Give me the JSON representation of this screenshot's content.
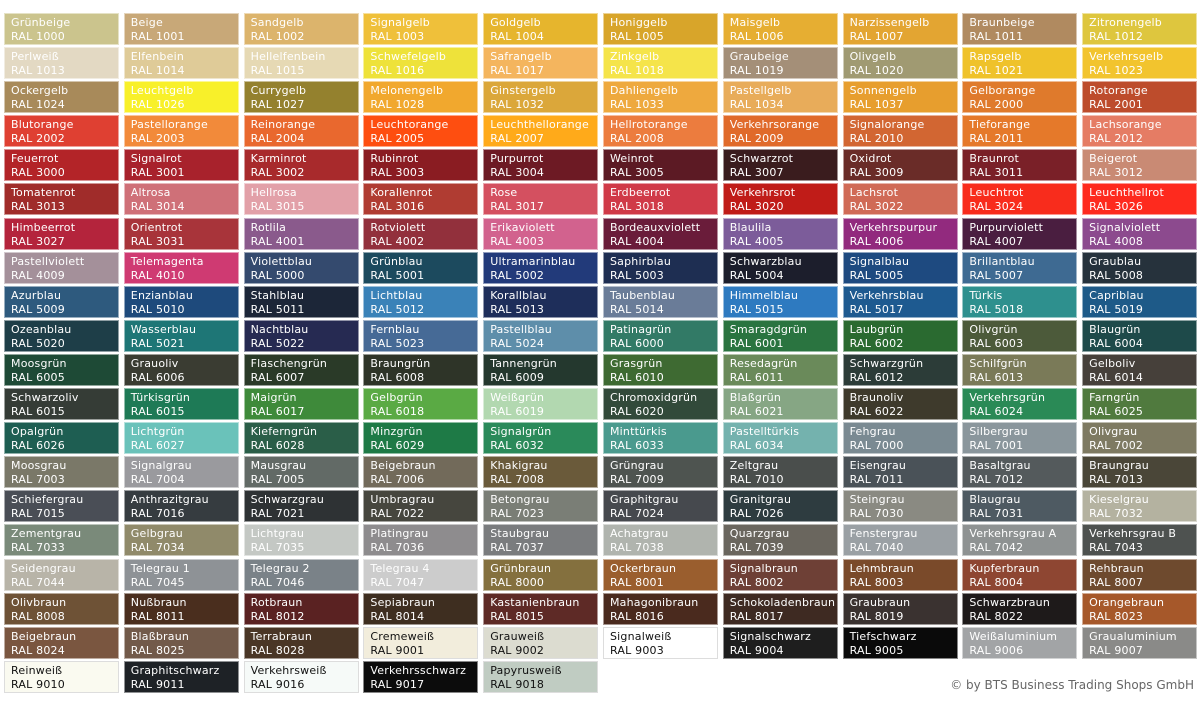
{
  "swatches": [
    {
      "name": "Grünbeige",
      "code": "RAL 1000",
      "color": "#cbc48d"
    },
    {
      "name": "Beige",
      "code": "RAL 1001",
      "color": "#c8a878"
    },
    {
      "name": "Sandgelb",
      "code": "RAL 1002",
      "color": "#dcb46c"
    },
    {
      "name": "Signalgelb",
      "code": "RAL 1003",
      "color": "#efc03a"
    },
    {
      "name": "Goldgelb",
      "code": "RAL 1004",
      "color": "#e6b52d"
    },
    {
      "name": "Honiggelb",
      "code": "RAL 1005",
      "color": "#d8a52a"
    },
    {
      "name": "Maisgelb",
      "code": "RAL 1006",
      "color": "#e6ae32"
    },
    {
      "name": "Narzissengelb",
      "code": "RAL 1007",
      "color": "#e3a532"
    },
    {
      "name": "Braunbeige",
      "code": "RAL 1011",
      "color": "#b08a60"
    },
    {
      "name": "Zitronengelb",
      "code": "RAL 1012",
      "color": "#dec63e"
    },
    {
      "name": "Perlweiß",
      "code": "RAL 1013",
      "color": "#e3d9c3"
    },
    {
      "name": "Elfenbein",
      "code": "RAL 1014",
      "color": "#dfcb98"
    },
    {
      "name": "Hellelfenbein",
      "code": "RAL 1015",
      "color": "#e6d9b4"
    },
    {
      "name": "Schwefelgelb",
      "code": "RAL 1016",
      "color": "#eee23a"
    },
    {
      "name": "Safrangelb",
      "code": "RAL 1017",
      "color": "#f4b55e"
    },
    {
      "name": "Zinkgelb",
      "code": "RAL 1018",
      "color": "#f5e44a"
    },
    {
      "name": "Graubeige",
      "code": "RAL 1019",
      "color": "#a48f78"
    },
    {
      "name": "Olivgelb",
      "code": "RAL 1020",
      "color": "#a09a72"
    },
    {
      "name": "Rapsgelb",
      "code": "RAL 1021",
      "color": "#efc22a"
    },
    {
      "name": "Verkehrsgelb",
      "code": "RAL 1023",
      "color": "#f2c42e"
    },
    {
      "name": "Ockergelb",
      "code": "RAL 1024",
      "color": "#a88a5a"
    },
    {
      "name": "Leuchtgelb",
      "code": "RAL 1026",
      "color": "#f8f02a"
    },
    {
      "name": "Currygelb",
      "code": "RAL 1027",
      "color": "#94812e"
    },
    {
      "name": "Melonengelb",
      "code": "RAL 1028",
      "color": "#f1a82e"
    },
    {
      "name": "Ginstergelb",
      "code": "RAL 1032",
      "color": "#dba73a"
    },
    {
      "name": "Dahliengelb",
      "code": "RAL 1033",
      "color": "#eea93e"
    },
    {
      "name": "Pastellgelb",
      "code": "RAL 1034",
      "color": "#e8ac5a"
    },
    {
      "name": "Sonnengelb",
      "code": "RAL 1037",
      "color": "#e79e2e"
    },
    {
      "name": "Gelborange",
      "code": "RAL 2000",
      "color": "#df7a2c"
    },
    {
      "name": "Rotorange",
      "code": "RAL 2001",
      "color": "#bd4c2c"
    },
    {
      "name": "Blutorange",
      "code": "RAL 2002",
      "color": "#df4032"
    },
    {
      "name": "Pastellorange",
      "code": "RAL 2003",
      "color": "#f28a3a"
    },
    {
      "name": "Reinorange",
      "code": "RAL 2004",
      "color": "#e9682e"
    },
    {
      "name": "Leuchtorange",
      "code": "RAL 2005",
      "color": "#fe4e10"
    },
    {
      "name": "Leuchthellorange",
      "code": "RAL 2007",
      "color": "#ffaa1a"
    },
    {
      "name": "Hellrotorange",
      "code": "RAL 2008",
      "color": "#ec7c3e"
    },
    {
      "name": "Verkehrsorange",
      "code": "RAL 2009",
      "color": "#e06a2a"
    },
    {
      "name": "Signalorange",
      "code": "RAL 2010",
      "color": "#d26632"
    },
    {
      "name": "Tieforange",
      "code": "RAL 2011",
      "color": "#e5792a"
    },
    {
      "name": "Lachsorange",
      "code": "RAL 2012",
      "color": "#e57c64"
    },
    {
      "name": "Feuerrot",
      "code": "RAL 3000",
      "color": "#b32428"
    },
    {
      "name": "Signalrot",
      "code": "RAL 3001",
      "color": "#a8222c"
    },
    {
      "name": "Karminrot",
      "code": "RAL 3002",
      "color": "#a82a2c"
    },
    {
      "name": "Rubinrot",
      "code": "RAL 3003",
      "color": "#8a1c22"
    },
    {
      "name": "Purpurrot",
      "code": "RAL 3004",
      "color": "#6d1a24"
    },
    {
      "name": "Weinrot",
      "code": "RAL 3005",
      "color": "#5c1a24"
    },
    {
      "name": "Schwarzrot",
      "code": "RAL 3007",
      "color": "#3a1c1e"
    },
    {
      "name": "Oxidrot",
      "code": "RAL 3009",
      "color": "#6a2c28"
    },
    {
      "name": "Braunrot",
      "code": "RAL 3011",
      "color": "#7a2028"
    },
    {
      "name": "Beigerot",
      "code": "RAL 3012",
      "color": "#c98a74"
    },
    {
      "name": "Tomatenrot",
      "code": "RAL 3013",
      "color": "#a02c2a"
    },
    {
      "name": "Altrosa",
      "code": "RAL 3014",
      "color": "#cf7078"
    },
    {
      "name": "Hellrosa",
      "code": "RAL 3015",
      "color": "#e2a0a8"
    },
    {
      "name": "Korallenrot",
      "code": "RAL 3016",
      "color": "#b03c32"
    },
    {
      "name": "Rose",
      "code": "RAL 3017",
      "color": "#d45060"
    },
    {
      "name": "Erdbeerrot",
      "code": "RAL 3018",
      "color": "#d03a48"
    },
    {
      "name": "Verkehrsrot",
      "code": "RAL 3020",
      "color": "#c01c18"
    },
    {
      "name": "Lachsrot",
      "code": "RAL 3022",
      "color": "#d06a56"
    },
    {
      "name": "Leuchtrot",
      "code": "RAL 3024",
      "color": "#f82c1c"
    },
    {
      "name": "Leuchthellrot",
      "code": "RAL 3026",
      "color": "#fe2a1e"
    },
    {
      "name": "Himbeerrot",
      "code": "RAL 3027",
      "color": "#b4243c"
    },
    {
      "name": "Orientrot",
      "code": "RAL 3031",
      "color": "#a8343a"
    },
    {
      "name": "Rotlila",
      "code": "RAL 4001",
      "color": "#8a5a8c"
    },
    {
      "name": "Rotviolett",
      "code": "RAL 4002",
      "color": "#92303c"
    },
    {
      "name": "Erikaviolett",
      "code": "RAL 4003",
      "color": "#d2628e"
    },
    {
      "name": "Bordeauxviolett",
      "code": "RAL 4004",
      "color": "#6a1c3a"
    },
    {
      "name": "Blaulila",
      "code": "RAL 4005",
      "color": "#7c5c9a"
    },
    {
      "name": "Verkehrspurpur",
      "code": "RAL 4006",
      "color": "#922a7e"
    },
    {
      "name": "Purpurviolett",
      "code": "RAL 4007",
      "color": "#4a1e40"
    },
    {
      "name": "Signalviolett",
      "code": "RAL 4008",
      "color": "#8c4a8e"
    },
    {
      "name": "Pastellviolett",
      "code": "RAL 4009",
      "color": "#a4909a"
    },
    {
      "name": "Telemagenta",
      "code": "RAL 4010",
      "color": "#cf3a72"
    },
    {
      "name": "Violettblau",
      "code": "RAL 5000",
      "color": "#344a6e"
    },
    {
      "name": "Grünblau",
      "code": "RAL 5001",
      "color": "#1c4a5e"
    },
    {
      "name": "Ultramarinblau",
      "code": "RAL 5002",
      "color": "#223a7a"
    },
    {
      "name": "Saphirblau",
      "code": "RAL 5003",
      "color": "#1e2e52"
    },
    {
      "name": "Schwarzblau",
      "code": "RAL 5004",
      "color": "#1c1e2c"
    },
    {
      "name": "Signalblau",
      "code": "RAL 5005",
      "color": "#1e4a80"
    },
    {
      "name": "Brillantblau",
      "code": "RAL 5007",
      "color": "#3e6a92"
    },
    {
      "name": "Graublau",
      "code": "RAL 5008",
      "color": "#26323c"
    },
    {
      "name": "Azurblau",
      "code": "RAL 5009",
      "color": "#2e5a7e"
    },
    {
      "name": "Enzianblau",
      "code": "RAL 5010",
      "color": "#1e4a7c"
    },
    {
      "name": "Stahlblau",
      "code": "RAL 5011",
      "color": "#1c2638"
    },
    {
      "name": "Lichtblau",
      "code": "RAL 5012",
      "color": "#3a82b8"
    },
    {
      "name": "Korallblau",
      "code": "RAL 5013",
      "color": "#1e2e5a"
    },
    {
      "name": "Taubenblau",
      "code": "RAL 5014",
      "color": "#6a7c98"
    },
    {
      "name": "Himmelblau",
      "code": "RAL 5015",
      "color": "#2e7ac0"
    },
    {
      "name": "Verkehrsblau",
      "code": "RAL 5017",
      "color": "#1e5a90"
    },
    {
      "name": "Türkis",
      "code": "RAL 5018",
      "color": "#2e908e"
    },
    {
      "name": "Capriblau",
      "code": "RAL 5019",
      "color": "#1e5a88"
    },
    {
      "name": "Ozeanblau",
      "code": "RAL 5020",
      "color": "#1e3e48"
    },
    {
      "name": "Wasserblau",
      "code": "RAL 5021",
      "color": "#1e7676"
    },
    {
      "name": "Nachtblau",
      "code": "RAL 5022",
      "color": "#262a52"
    },
    {
      "name": "Fernblau",
      "code": "RAL 5023",
      "color": "#466a96"
    },
    {
      "name": "Pastellblau",
      "code": "RAL 5024",
      "color": "#5e8eaa"
    },
    {
      "name": "Patinagrün",
      "code": "RAL 6000",
      "color": "#327a66"
    },
    {
      "name": "Smaragdgrün",
      "code": "RAL 6001",
      "color": "#2a7440"
    },
    {
      "name": "Laubgrün",
      "code": "RAL 6002",
      "color": "#2a6a30"
    },
    {
      "name": "Olivgrün",
      "code": "RAL 6003",
      "color": "#4c5a3a"
    },
    {
      "name": "Blaugrün",
      "code": "RAL 6004",
      "color": "#1e4a4a"
    },
    {
      "name": "Moosgrün",
      "code": "RAL 6005",
      "color": "#1e4a36"
    },
    {
      "name": "Grauoliv",
      "code": "RAL 6006",
      "color": "#3a3c32"
    },
    {
      "name": "Flaschengrün",
      "code": "RAL 6007",
      "color": "#2a3a28"
    },
    {
      "name": "Braungrün",
      "code": "RAL 6008",
      "color": "#2e3428"
    },
    {
      "name": "Tannengrün",
      "code": "RAL 6009",
      "color": "#24382e"
    },
    {
      "name": "Grasgrün",
      "code": "RAL 6010",
      "color": "#3e6a32"
    },
    {
      "name": "Resedagrün",
      "code": "RAL 6011",
      "color": "#6a8a5a"
    },
    {
      "name": "Schwarzgrün",
      "code": "RAL 6012",
      "color": "#2c3c38"
    },
    {
      "name": "Schilfgrün",
      "code": "RAL 6013",
      "color": "#7a7a58"
    },
    {
      "name": "Gelboliv",
      "code": "RAL 6014",
      "color": "#46403a"
    },
    {
      "name": "Schwarzoliv",
      "code": "RAL 6015",
      "color": "#353c36"
    },
    {
      "name": "Türkisgrün",
      "code": "RAL 6015",
      "color": "#1e7a56"
    },
    {
      "name": "Maigrün",
      "code": "RAL 6017",
      "color": "#3e8a3a"
    },
    {
      "name": "Gelbgrün",
      "code": "RAL 6018",
      "color": "#5aaa44"
    },
    {
      "name": "Weißgrün",
      "code": "RAL 6019",
      "color": "#b2d8b0"
    },
    {
      "name": "Chromoxidgrün",
      "code": "RAL 6020",
      "color": "#324a3a"
    },
    {
      "name": "Blaßgrün",
      "code": "RAL 6021",
      "color": "#86a684"
    },
    {
      "name": "Braunoliv",
      "code": "RAL 6022",
      "color": "#3e3a2c"
    },
    {
      "name": "Verkehrsgrün",
      "code": "RAL 6024",
      "color": "#2a8a56"
    },
    {
      "name": "Farngrün",
      "code": "RAL 6025",
      "color": "#507a3e"
    },
    {
      "name": "Opalgrün",
      "code": "RAL 6026",
      "color": "#1e5e52"
    },
    {
      "name": "Lichtgrün",
      "code": "RAL 6027",
      "color": "#6ac2ba"
    },
    {
      "name": "Kieferngrün",
      "code": "RAL 6028",
      "color": "#2a5e48"
    },
    {
      "name": "Minzgrün",
      "code": "RAL 6029",
      "color": "#1e7a46"
    },
    {
      "name": "Signalgrün",
      "code": "RAL 6032",
      "color": "#2a8a5a"
    },
    {
      "name": "Minttürkis",
      "code": "RAL 6033",
      "color": "#4a9a8e"
    },
    {
      "name": "Pastelltürkis",
      "code": "RAL 6034",
      "color": "#74b2ae"
    },
    {
      "name": "Fehgrau",
      "code": "RAL 7000",
      "color": "#7a8a92"
    },
    {
      "name": "Silbergrau",
      "code": "RAL 7001",
      "color": "#8a969c"
    },
    {
      "name": "Olivgrau",
      "code": "RAL 7002",
      "color": "#7e7a62"
    },
    {
      "name": "Moosgrau",
      "code": "RAL 7003",
      "color": "#7a7868"
    },
    {
      "name": "Signalgrau",
      "code": "RAL 7004",
      "color": "#9a9a9e"
    },
    {
      "name": "Mausgrau",
      "code": "RAL 7005",
      "color": "#626a66"
    },
    {
      "name": "Beigebraun",
      "code": "RAL 7006",
      "color": "#726a5a"
    },
    {
      "name": "Khakigrau",
      "code": "RAL 7008",
      "color": "#6a5a3a"
    },
    {
      "name": "Grüngrau",
      "code": "RAL 7009",
      "color": "#4e5450"
    },
    {
      "name": "Zeltgrau",
      "code": "RAL 7010",
      "color": "#4a4e4c"
    },
    {
      "name": "Eisengrau",
      "code": "RAL 7011",
      "color": "#4a5258"
    },
    {
      "name": "Basaltgrau",
      "code": "RAL 7012",
      "color": "#545a5c"
    },
    {
      "name": "Braungrau",
      "code": "RAL 7013",
      "color": "#4a4638"
    },
    {
      "name": "Schiefergrau",
      "code": "RAL 7015",
      "color": "#4a4e56"
    },
    {
      "name": "Anthrazitgrau",
      "code": "RAL 7016",
      "color": "#363c40"
    },
    {
      "name": "Schwarzgrau",
      "code": "RAL 7021",
      "color": "#2e3234"
    },
    {
      "name": "Umbragrau",
      "code": "RAL 7022",
      "color": "#46463e"
    },
    {
      "name": "Betongrau",
      "code": "RAL 7023",
      "color": "#7a7e76"
    },
    {
      "name": "Graphitgrau",
      "code": "RAL 7024",
      "color": "#46494e"
    },
    {
      "name": "Granitgrau",
      "code": "RAL 7026",
      "color": "#2e3c40"
    },
    {
      "name": "Steingrau",
      "code": "RAL 7030",
      "color": "#8a8a82"
    },
    {
      "name": "Blaugrau",
      "code": "RAL 7031",
      "color": "#4e5a62"
    },
    {
      "name": "Kieselgrau",
      "code": "RAL 7032",
      "color": "#b4b2a0"
    },
    {
      "name": "Zementgrau",
      "code": "RAL 7033",
      "color": "#7a8a7a"
    },
    {
      "name": "Gelbgrau",
      "code": "RAL 7034",
      "color": "#908a6a"
    },
    {
      "name": "Lichtgrau",
      "code": "RAL 7035",
      "color": "#c4c8c4"
    },
    {
      "name": "Platingrau",
      "code": "RAL 7036",
      "color": "#8e8c8e"
    },
    {
      "name": "Staubgrau",
      "code": "RAL 7037",
      "color": "#7a7c7e"
    },
    {
      "name": "Achatgrau",
      "code": "RAL 7038",
      "color": "#b0b4ae"
    },
    {
      "name": "Quarzgrau",
      "code": "RAL 7039",
      "color": "#6a665e"
    },
    {
      "name": "Fenstergrau",
      "code": "RAL 7040",
      "color": "#9aa0a4"
    },
    {
      "name": "Verkehrsgrau A",
      "code": "RAL 7042",
      "color": "#8e9292"
    },
    {
      "name": "Verkehrsgrau B",
      "code": "RAL 7043",
      "color": "#4e5250"
    },
    {
      "name": "Seidengrau",
      "code": "RAL 7044",
      "color": "#b8b4a8"
    },
    {
      "name": "Telegrau 1",
      "code": "RAL 7045",
      "color": "#8e9296"
    },
    {
      "name": "Telegrau 2",
      "code": "RAL 7046",
      "color": "#7a8288"
    },
    {
      "name": "Telegrau 4",
      "code": "RAL 7047",
      "color": "#cccccc"
    },
    {
      "name": "Grünbraun",
      "code": "RAL 8000",
      "color": "#84703e"
    },
    {
      "name": "Ockerbraun",
      "code": "RAL 8001",
      "color": "#9a5e2e"
    },
    {
      "name": "Signalbraun",
      "code": "RAL 8002",
      "color": "#6e4036"
    },
    {
      "name": "Lehmbraun",
      "code": "RAL 8003",
      "color": "#7a4a2a"
    },
    {
      "name": "Kupferbraun",
      "code": "RAL 8004",
      "color": "#8e4632"
    },
    {
      "name": "Rehbraun",
      "code": "RAL 8007",
      "color": "#6e4a2e"
    },
    {
      "name": "Olivbraun",
      "code": "RAL 8008",
      "color": "#6e5236"
    },
    {
      "name": "Nußbraun",
      "code": "RAL 8011",
      "color": "#4a2e1e"
    },
    {
      "name": "Rotbraun",
      "code": "RAL 8012",
      "color": "#5a2222"
    },
    {
      "name": "Sepiabraun",
      "code": "RAL 8014",
      "color": "#3e2e20"
    },
    {
      "name": "Kastanienbraun",
      "code": "RAL 8015",
      "color": "#5e2a26"
    },
    {
      "name": "Mahagonibraun",
      "code": "RAL 8016",
      "color": "#4a2a1e"
    },
    {
      "name": "Schokoladenbraun",
      "code": "RAL 8017",
      "color": "#3e2a22"
    },
    {
      "name": "Graubraun",
      "code": "RAL 8019",
      "color": "#3a3230"
    },
    {
      "name": "Schwarzbraun",
      "code": "RAL 8022",
      "color": "#1e1a1a"
    },
    {
      "name": "Orangebraun",
      "code": "RAL 8023",
      "color": "#a6582a"
    },
    {
      "name": "Beigebraun",
      "code": "RAL 8024",
      "color": "#7a5640"
    },
    {
      "name": "Blaßbraun",
      "code": "RAL 8025",
      "color": "#725a4a"
    },
    {
      "name": "Terrabraun",
      "code": "RAL 8028",
      "color": "#4a3626"
    },
    {
      "name": "Cremeweiß",
      "code": "RAL 9001",
      "color": "#f2eddc",
      "dark": true
    },
    {
      "name": "Grauweiß",
      "code": "RAL 9002",
      "color": "#dcdcd0",
      "dark": true
    },
    {
      "name": "Signalweiß",
      "code": "RAL 9003",
      "color": "#ffffff",
      "dark": true
    },
    {
      "name": "Signalschwarz",
      "code": "RAL 9004",
      "color": "#1e1e1e"
    },
    {
      "name": "Tiefschwarz",
      "code": "RAL 9005",
      "color": "#0a0a0a"
    },
    {
      "name": "Weißaluminium",
      "code": "RAL 9006",
      "color": "#a2a4a6"
    },
    {
      "name": "Graualuminium",
      "code": "RAL 9007",
      "color": "#8a8a88"
    },
    {
      "name": "Reinweiß",
      "code": "RAL 9010",
      "color": "#fafaf0",
      "dark": true
    },
    {
      "name": "Graphitschwarz",
      "code": "RAL 9011",
      "color": "#1e2226"
    },
    {
      "name": "Verkehrsweiß",
      "code": "RAL 9016",
      "color": "#f6faf8",
      "dark": true
    },
    {
      "name": "Verkehrsschwarz",
      "code": "RAL 9017",
      "color": "#0c0c0c"
    },
    {
      "name": "Papyrusweiß",
      "code": "RAL 9018",
      "color": "#c0ccc2",
      "dark": true
    }
  ],
  "copyright": "© by BTS Business Trading Shops GmbH"
}
